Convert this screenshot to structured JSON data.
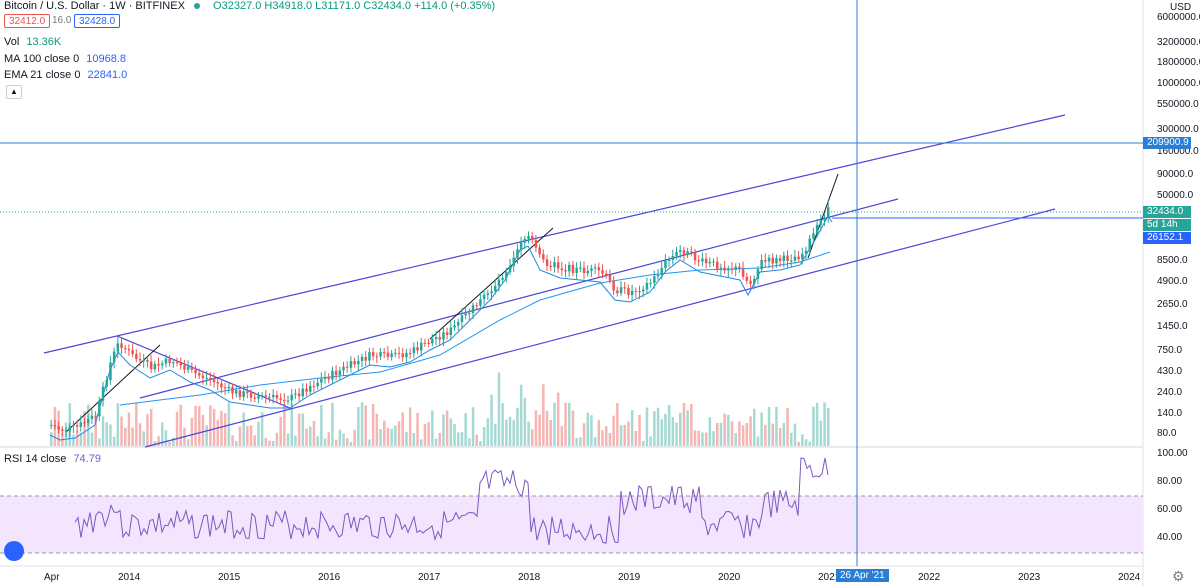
{
  "header": {
    "symbol": "Bitcoin / U.S. Dollar · 1W · BITFINEX",
    "ohlc": "O32327.0 H34918.0 L31171.0 C32434.0 +114.0 (+0.35%)",
    "bid": "32412.0",
    "spread": "16.0",
    "ask": "32428.0"
  },
  "indicators": {
    "vol_label": "Vol",
    "vol_value": "13.36K",
    "ma_label": "MA 100 close 0",
    "ma_value": "10968.8",
    "ema_label": "EMA 21 close 0",
    "ema_value": "22841.0",
    "rsi_label": "RSI 14 close",
    "rsi_value": "74.79"
  },
  "price_axis": {
    "currency": "USD",
    "ticks": [
      "6000000.0",
      "3200000.0",
      "1800000.0",
      "1000000.0",
      "550000.0",
      "300000.0",
      "160000.0",
      "90000.0",
      "50000.0",
      "8500.0",
      "4900.0",
      "2650.0",
      "1450.0",
      "750.0",
      "430.0",
      "240.0",
      "140.0",
      "80.0"
    ]
  },
  "price_tags": {
    "crosshair": "209900.9",
    "last": "32434.0",
    "countdown": "5d 14h",
    "level": "26152.1"
  },
  "rsi_axis": {
    "ticks": [
      "100.00",
      "80.00",
      "60.00",
      "40.00"
    ]
  },
  "time_axis": {
    "ticks": [
      "Apr",
      "2014",
      "2015",
      "2016",
      "2017",
      "2018",
      "2019",
      "2020",
      "2021",
      "2022",
      "2023",
      "2024"
    ],
    "crosshair": "26 Apr '21"
  },
  "chart_data": {
    "type": "candlestick",
    "scale": "log",
    "x_start": "2013-04",
    "close_by_year": [
      {
        "date": "2013-04",
        "close": 100
      },
      {
        "date": "2013-12",
        "close": 1000
      },
      {
        "date": "2015-01",
        "close": 250
      },
      {
        "date": "2016-06",
        "close": 700
      },
      {
        "date": "2017-12",
        "close": 19000
      },
      {
        "date": "2018-12",
        "close": 3500
      },
      {
        "date": "2019-06",
        "close": 12000
      },
      {
        "date": "2020-03",
        "close": 5000
      },
      {
        "date": "2021-01",
        "close": 32434
      }
    ],
    "rsi_upper_band": 70,
    "rsi_lower_band": 30
  },
  "colors": {
    "up": "#26a69a",
    "down": "#ef5350",
    "channel": "#4a45d6",
    "ma": "#2196f3",
    "crosshair": "#2a7fd4",
    "rsi": "#7e57c2",
    "rsi_band": "#f3e5fd"
  }
}
